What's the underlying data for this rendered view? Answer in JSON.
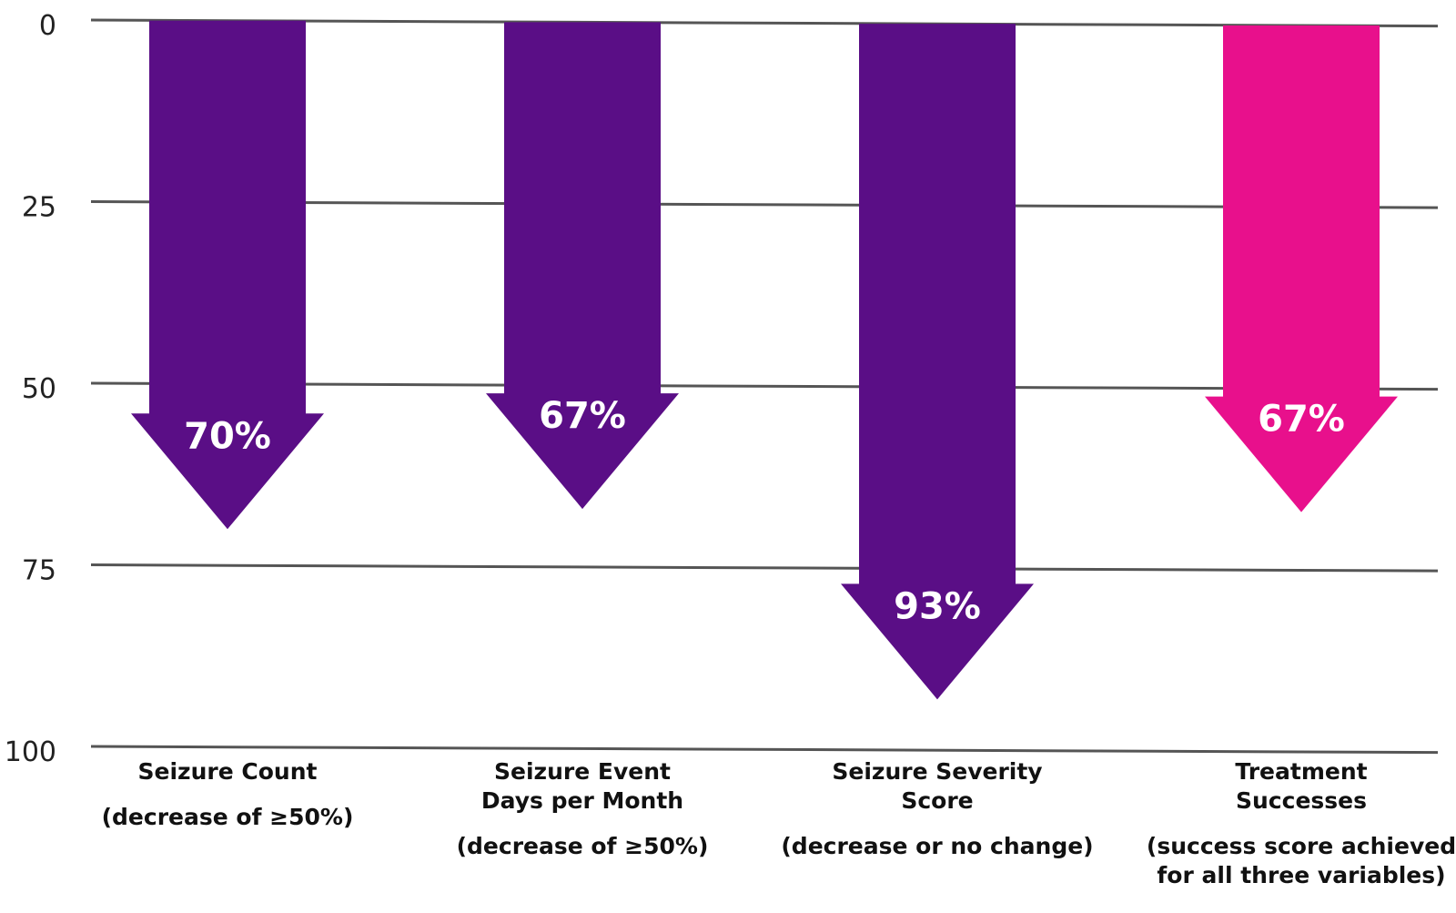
{
  "chart_data": {
    "type": "bar",
    "orientation": "downward-arrows",
    "title": "",
    "xlabel": "",
    "ylabel": "",
    "ylim": [
      0,
      100
    ],
    "yticks": [
      0,
      25,
      50,
      75,
      100
    ],
    "y_inverted": true,
    "grid": true,
    "categories": [
      {
        "name": "Seizure Count",
        "note": "(decrease of ≥50%)",
        "value": 70,
        "label": "70%",
        "color": "#5a0e86"
      },
      {
        "name": "Seizure Event Days per Month",
        "note": "(decrease of ≥50%)",
        "value": 67,
        "label": "67%",
        "color": "#5a0e86"
      },
      {
        "name": "Seizure Severity Score",
        "note": "(decrease or no change)",
        "value": 93,
        "label": "93%",
        "color": "#5a0e86"
      },
      {
        "name": "Treatment Successes",
        "note": "(success score achieved for all three variables)",
        "value": 67,
        "label": "67%",
        "color": "#e8108c"
      }
    ]
  }
}
